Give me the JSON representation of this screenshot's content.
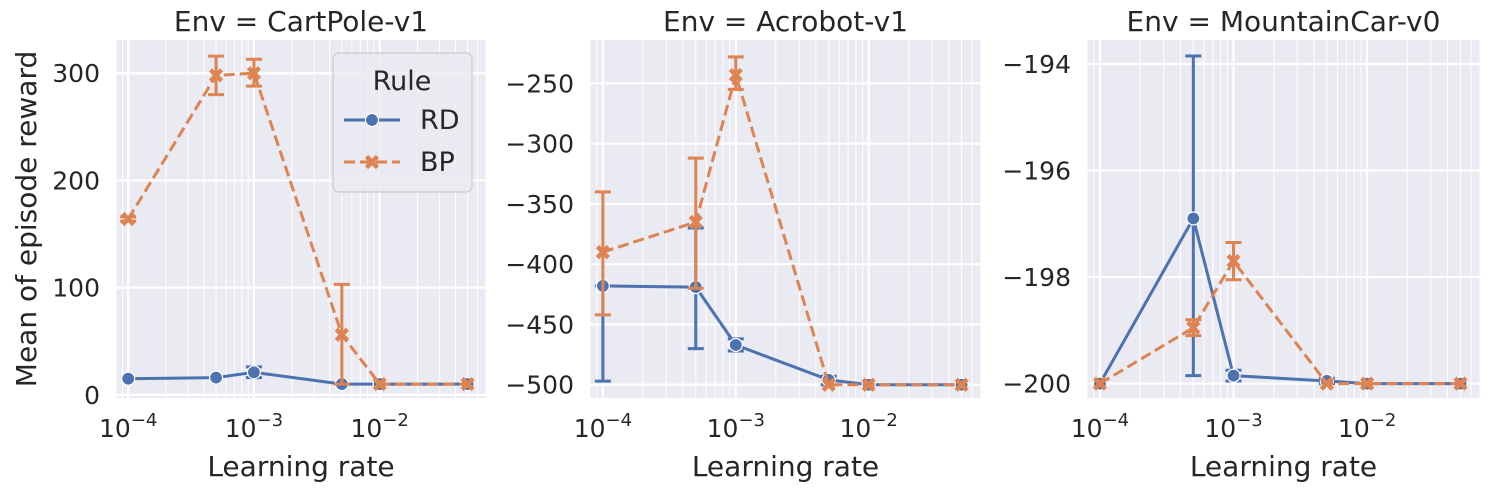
{
  "legend": {
    "title": "Rule",
    "items": [
      {
        "name": "RD",
        "color": "#4c72b0",
        "marker": "circle",
        "dash": "solid"
      },
      {
        "name": "BP",
        "color": "#dd8452",
        "marker": "x",
        "dash": "dashed"
      }
    ]
  },
  "chart_data": [
    {
      "type": "line",
      "title": "Env = CartPole-v1",
      "xlabel": "Learning rate",
      "ylabel": "Mean of episode reward",
      "xscale": "log",
      "xlim": [
        8e-05,
        0.07
      ],
      "ylim": [
        -3,
        331
      ],
      "xticks": [
        {
          "value": 0.0001,
          "label": "10^-4"
        },
        {
          "value": 0.001,
          "label": "10^-3"
        },
        {
          "value": 0.01,
          "label": "10^-2"
        }
      ],
      "yticks": [
        {
          "value": 0,
          "label": "0"
        },
        {
          "value": 100,
          "label": "100"
        },
        {
          "value": 200,
          "label": "200"
        },
        {
          "value": 300,
          "label": "300"
        }
      ],
      "grid": true,
      "legend": "upper right",
      "x": [
        0.0001,
        0.0005,
        0.001,
        0.005,
        0.01,
        0.05
      ],
      "series": [
        {
          "name": "RD",
          "values": [
            15,
            16,
            21,
            10,
            10,
            10
          ],
          "err_low": [
            15,
            16,
            16,
            10,
            10,
            10
          ],
          "err_high": [
            15,
            16,
            26,
            10,
            10,
            10
          ]
        },
        {
          "name": "BP",
          "values": [
            164,
            298,
            300,
            56,
            10,
            10
          ],
          "err_low": [
            162,
            280,
            288,
            10,
            10,
            10
          ],
          "err_high": [
            166,
            316,
            313,
            103,
            10,
            10
          ]
        }
      ]
    },
    {
      "type": "line",
      "title": "Env = Acrobot-v1",
      "xlabel": "Learning rate",
      "ylabel": "",
      "xscale": "log",
      "xlim": [
        8e-05,
        0.07
      ],
      "ylim": [
        -511,
        -214
      ],
      "xticks": [
        {
          "value": 0.0001,
          "label": "10^-4"
        },
        {
          "value": 0.001,
          "label": "10^-3"
        },
        {
          "value": 0.01,
          "label": "10^-2"
        }
      ],
      "yticks": [
        {
          "value": -500,
          "label": "−500"
        },
        {
          "value": -450,
          "label": "−450"
        },
        {
          "value": -400,
          "label": "−400"
        },
        {
          "value": -350,
          "label": "−350"
        },
        {
          "value": -300,
          "label": "−300"
        },
        {
          "value": -250,
          "label": "−250"
        }
      ],
      "grid": true,
      "x": [
        0.0001,
        0.0005,
        0.001,
        0.005,
        0.01,
        0.05
      ],
      "series": [
        {
          "name": "RD",
          "values": [
            -418,
            -419,
            -467,
            -496,
            -500,
            -500
          ],
          "err_low": [
            -497,
            -470,
            -472,
            -500,
            -500,
            -500
          ],
          "err_high": [
            -418,
            -370,
            -462,
            -493,
            -500,
            -500
          ]
        },
        {
          "name": "BP",
          "values": [
            -390,
            -365,
            -243,
            -500,
            -500,
            -500
          ],
          "err_low": [
            -442,
            -420,
            -255,
            -500,
            -500,
            -500
          ],
          "err_high": [
            -340,
            -312,
            -228,
            -500,
            -500,
            -500
          ]
        }
      ]
    },
    {
      "type": "line",
      "title": "Env = MountainCar-v0",
      "xlabel": "Learning rate",
      "ylabel": "",
      "xscale": "log",
      "xlim": [
        8e-05,
        0.07
      ],
      "ylim": [
        -200.27,
        -193.55
      ],
      "xticks": [
        {
          "value": 0.0001,
          "label": "10^-4"
        },
        {
          "value": 0.001,
          "label": "10^-3"
        },
        {
          "value": 0.01,
          "label": "10^-2"
        }
      ],
      "yticks": [
        {
          "value": -200,
          "label": "−200"
        },
        {
          "value": -198,
          "label": "−198"
        },
        {
          "value": -196,
          "label": "−196"
        },
        {
          "value": -194,
          "label": "−194"
        }
      ],
      "grid": true,
      "x": [
        0.0001,
        0.0005,
        0.001,
        0.005,
        0.01,
        0.05
      ],
      "series": [
        {
          "name": "RD",
          "values": [
            -200,
            -196.9,
            -199.85,
            -199.95,
            -200,
            -200
          ],
          "err_low": [
            -200,
            -199.85,
            -199.95,
            -200,
            -200,
            -200
          ],
          "err_high": [
            -200,
            -193.85,
            -199.75,
            -199.9,
            -200,
            -200
          ]
        },
        {
          "name": "BP",
          "values": [
            -200,
            -198.95,
            -197.7,
            -200,
            -200,
            -200
          ],
          "err_low": [
            -200,
            -199.1,
            -198.05,
            -200,
            -200,
            -200
          ],
          "err_high": [
            -200,
            -198.8,
            -197.35,
            -200,
            -200,
            -200
          ]
        }
      ]
    }
  ]
}
